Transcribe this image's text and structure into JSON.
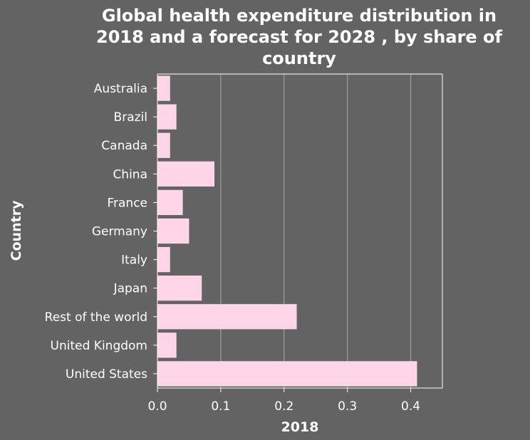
{
  "chart_data": {
    "type": "bar",
    "orientation": "horizontal",
    "title_lines": [
      "Global health expenditure distribution in",
      "2018 and a forecast for 2028 , by share of",
      "country"
    ],
    "xlabel": "2018",
    "ylabel": "Country",
    "categories": [
      "Australia",
      "Brazil",
      "Canada",
      "China",
      "France",
      "Germany",
      "Italy",
      "Japan",
      "Rest of the world",
      "United Kingdom",
      "United States"
    ],
    "values": [
      0.02,
      0.03,
      0.02,
      0.09,
      0.04,
      0.05,
      0.02,
      0.07,
      0.22,
      0.03,
      0.41
    ],
    "xlim": [
      0,
      0.45
    ],
    "xticks": [
      0.0,
      0.1,
      0.2,
      0.3,
      0.4
    ],
    "xtick_labels": [
      "0.0",
      "0.1",
      "0.2",
      "0.3",
      "0.4"
    ],
    "grid": "vertical",
    "colors": {
      "background": "#636363",
      "bar": "#ffd6e7",
      "grid": "#999999",
      "text": "#ffffff"
    }
  }
}
